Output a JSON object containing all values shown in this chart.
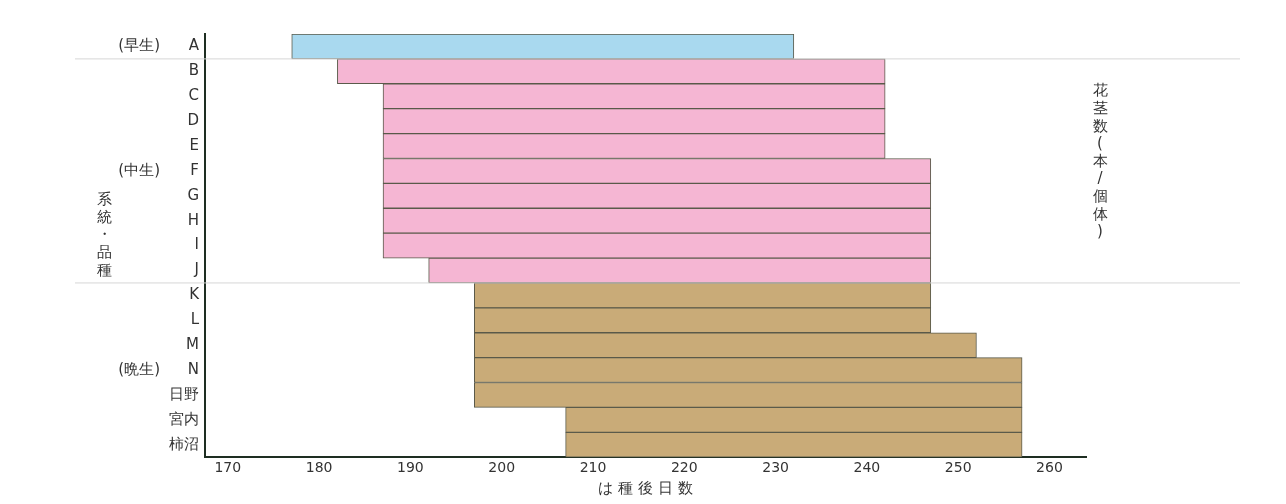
{
  "chart_data": {
    "type": "bar",
    "orientation": "horizontal",
    "categories": [
      "A",
      "B",
      "C",
      "D",
      "E",
      "F",
      "G",
      "H",
      "I",
      "J",
      "K",
      "L",
      "M",
      "N",
      "日野",
      "宮内",
      "柿沼"
    ],
    "base": [
      177,
      182,
      187,
      187,
      187,
      187,
      187,
      187,
      187,
      192,
      197,
      197,
      197,
      197,
      197,
      207,
      207
    ],
    "values": [
      55,
      60,
      55,
      55,
      55,
      60,
      60,
      60,
      60,
      55,
      50,
      50,
      55,
      60,
      60,
      50,
      50
    ],
    "colors": [
      "#a9d9ef",
      "#f5b6d3",
      "#f5b6d3",
      "#f5b6d3",
      "#f5b6d3",
      "#f5b6d3",
      "#f5b6d3",
      "#f5b6d3",
      "#f5b6d3",
      "#f5b6d3",
      "#c9ab78",
      "#c9ab78",
      "#c9ab78",
      "#c9ab78",
      "#c9ab78",
      "#c9ab78",
      "#c9ab78"
    ],
    "xlim": [
      167.5,
      264
    ],
    "xticks": [
      170,
      180,
      190,
      200,
      210,
      220,
      230,
      240,
      250,
      260
    ],
    "xlabel": "は 種 後 日 数",
    "ylabel": "系統・品種",
    "y2label": "花茎数(本/個体)",
    "annotations": [
      "(早生)",
      "(中生)",
      "(晩生)"
    ],
    "grid": false,
    "legend": false
  }
}
